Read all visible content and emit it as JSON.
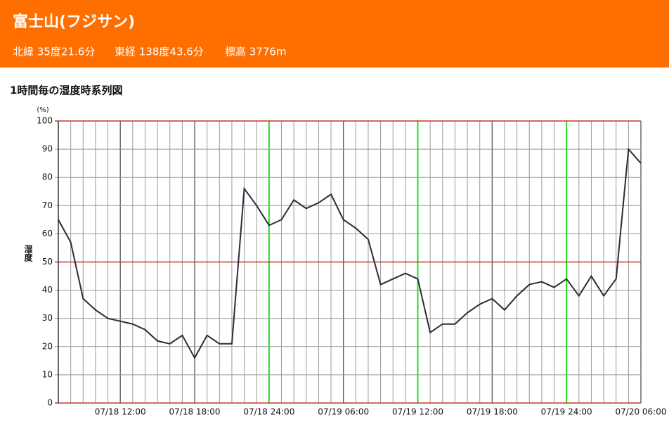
{
  "header": {
    "title": "富士山(フジサン)",
    "info": [
      "北緯 35度21.6分",
      "東経 138度43.6分",
      "標高 3776m"
    ]
  },
  "chart_data": {
    "type": "line",
    "title": "1時間毎の湿度時系列図",
    "y_label": "湿度",
    "y_unit": "(%)",
    "categories": [
      null,
      null,
      null,
      null,
      null,
      "07/18 12:00",
      null,
      null,
      null,
      null,
      null,
      "07/18 18:00",
      null,
      null,
      null,
      null,
      null,
      "07/18 24:00",
      null,
      null,
      null,
      null,
      null,
      "07/19 06:00",
      null,
      null,
      null,
      null,
      null,
      "07/19 12:00",
      null,
      null,
      null,
      null,
      null,
      "07/19 18:00",
      null,
      null,
      null,
      null,
      null,
      "07/19 24:00",
      null,
      null,
      null,
      null,
      null,
      "07/20 06:00"
    ],
    "values": [
      65,
      57,
      37,
      33,
      30,
      29,
      28,
      26,
      22,
      21,
      24,
      16,
      24,
      21,
      21,
      76,
      70,
      63,
      65,
      72,
      69,
      71,
      74,
      65,
      62,
      58,
      42,
      44,
      46,
      44,
      25,
      28,
      28,
      32,
      35,
      37,
      33,
      38,
      42,
      43,
      41,
      44,
      38,
      45,
      38,
      44,
      90,
      85
    ],
    "color": "#2b2b3a",
    "ylim": [
      0,
      100
    ],
    "yticks": [
      0,
      10,
      20,
      30,
      40,
      50,
      60,
      70,
      80,
      90,
      100
    ],
    "grid": true
  }
}
